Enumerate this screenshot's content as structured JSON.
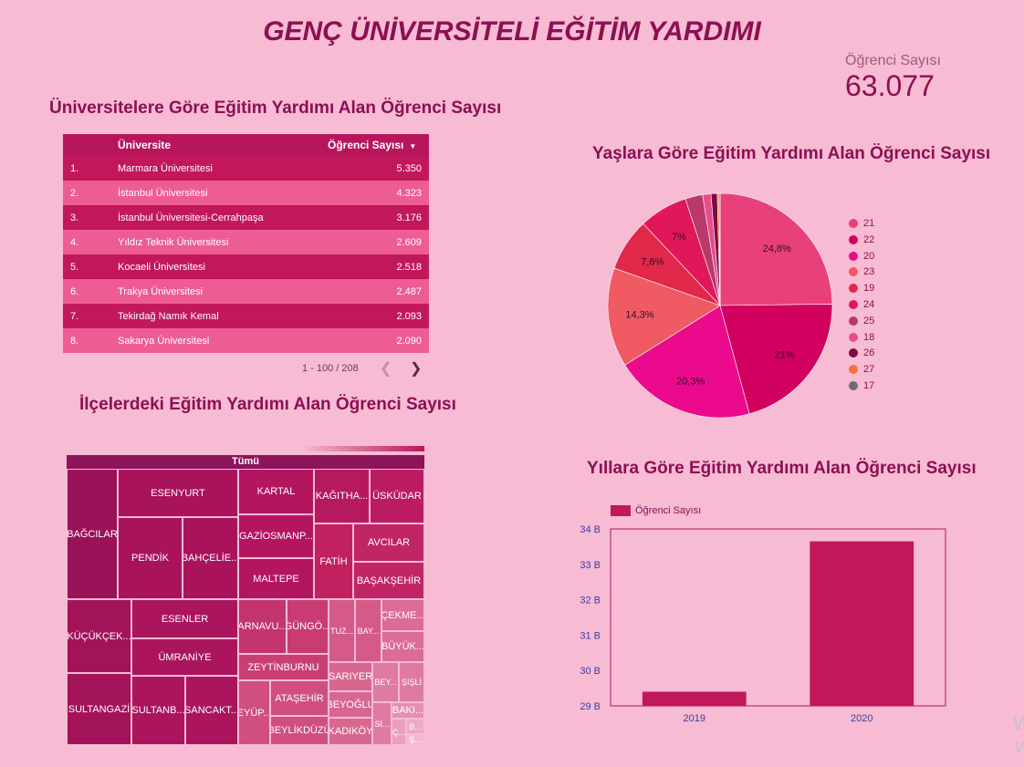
{
  "title": "GENÇ ÜNİVERSİTELİ EĞİTİM YARDIMI",
  "kpi": {
    "label": "Öğrenci Sayısı",
    "value": "63.077"
  },
  "colors": {
    "background": "#f7bbd3",
    "title": "#8c0f53",
    "bar": "#c2185b"
  },
  "table_section": {
    "title": "Üniversitelere Göre Eğitim Yardımı Alan Öğrenci Sayısı",
    "columns": [
      "Üniversite",
      "Öğrenci Sayısı"
    ],
    "rows": [
      {
        "n": "1.",
        "name": "Marmara Üniversitesi",
        "value": "5.350"
      },
      {
        "n": "2.",
        "name": "İstanbul Üniversitesi",
        "value": "4.323"
      },
      {
        "n": "3.",
        "name": "İstanbul Üniversitesi-Cerrahpaşa",
        "value": "3.176"
      },
      {
        "n": "4.",
        "name": "Yıldız Teknik Üniversitesi",
        "value": "2.609"
      },
      {
        "n": "5.",
        "name": "Kocaeli Üniversitesi",
        "value": "2.518"
      },
      {
        "n": "6.",
        "name": "Trakya Üniversitesi",
        "value": "2.487"
      },
      {
        "n": "7.",
        "name": "Tekirdağ Namık Kemal",
        "value": "2.093"
      },
      {
        "n": "8.",
        "name": "Sakarya Üniversitesi",
        "value": "2.090"
      }
    ],
    "pager": "1 - 100 / 208"
  },
  "pie_section": {
    "title": "Yaşlara Göre Eğitim Yardımı Alan Öğrenci Sayısı"
  },
  "treemap_section": {
    "title": "İlçelerdeki Eğitim Yardımı Alan Öğrenci Sayısı",
    "header": "Tümü"
  },
  "bar_section": {
    "title": "Yıllara Göre Eğitim Yardımı Alan Öğrenci Sayısı",
    "legend": "Öğrenci Sayısı"
  },
  "watermark": [
    "W",
    "W"
  ],
  "chart_data": [
    {
      "type": "table",
      "title": "Üniversitelere Göre Eğitim Yardımı Alan Öğrenci Sayısı",
      "columns": [
        "Üniversite",
        "Öğrenci Sayısı"
      ],
      "rows": [
        [
          "Marmara Üniversitesi",
          5350
        ],
        [
          "İstanbul Üniversitesi",
          4323
        ],
        [
          "İstanbul Üniversitesi-Cerrahpaşa",
          3176
        ],
        [
          "Yıldız Teknik Üniversitesi",
          2609
        ],
        [
          "Kocaeli Üniversitesi",
          2518
        ],
        [
          "Trakya Üniversitesi",
          2487
        ],
        [
          "Tekirdağ Namık Kemal",
          2093
        ],
        [
          "Sakarya Üniversitesi",
          2090
        ]
      ]
    },
    {
      "type": "pie",
      "title": "Yaşlara Göre Eğitim Yardımı Alan Öğrenci Sayısı",
      "legend_position": "right",
      "slices": [
        {
          "label": "21",
          "value": 24.8,
          "text": "24,8%",
          "color": "#e8407a"
        },
        {
          "label": "22",
          "value": 21.0,
          "text": "21%",
          "color": "#d2005f"
        },
        {
          "label": "20",
          "value": 20.3,
          "text": "20,3%",
          "color": "#ec0a8c"
        },
        {
          "label": "23",
          "value": 14.3,
          "text": "14,3%",
          "color": "#ef5a63"
        },
        {
          "label": "19",
          "value": 7.6,
          "text": "7,6%",
          "color": "#e0284a"
        },
        {
          "label": "24",
          "value": 7.0,
          "text": "7%",
          "color": "#e0185a"
        },
        {
          "label": "25",
          "value": 2.5,
          "text": "",
          "color": "#b8396a"
        },
        {
          "label": "18",
          "value": 1.2,
          "text": "",
          "color": "#e84c8c"
        },
        {
          "label": "26",
          "value": 0.9,
          "text": "",
          "color": "#7a0a45"
        },
        {
          "label": "27",
          "value": 0.25,
          "text": "",
          "color": "#f57040"
        },
        {
          "label": "17",
          "value": 0.15,
          "text": "",
          "color": "#6d6d6d"
        }
      ]
    },
    {
      "type": "treemap",
      "title": "İlçelerdeki Eğitim Yardımı Alan Öğrenci Sayısı",
      "root": "Tümü",
      "cells": [
        "BAĞCILAR",
        "ESENYURT",
        "PENDİK",
        "BAHÇELİE...",
        "KARTAL",
        "GAZİOSMANP...",
        "MALTEPE",
        "KAĞITHA...",
        "ÜSKÜDAR",
        "FATİH",
        "AVCILAR",
        "BAŞAKŞEHİR",
        "KÜÇÜKÇEK...",
        "ESENLER",
        "ÜMRANİYE",
        "SULTANGAZİ",
        "SULTANB...",
        "SANCAKT...",
        "ARNAVU...",
        "GÜNGÖ...",
        "TUZ...",
        "BAY...",
        "ÇEKME...",
        "BÜYÜK...",
        "ZEYTİNBURNU",
        "EYÜP...",
        "ATAŞEHİR",
        "SARIYER",
        "BEY...",
        "ŞİŞLİ",
        "BEYOĞLU",
        "BAKI...",
        "BEYLİKDÜZÜ",
        "KADIKÖY",
        "Sİ...",
        "Ç...",
        "B...",
        "Ş..."
      ]
    },
    {
      "type": "bar",
      "title": "Yıllara Göre Eğitim Yardımı Alan Öğrenci Sayısı",
      "categories": [
        "2019",
        "2020"
      ],
      "series": [
        {
          "name": "Öğrenci Sayısı",
          "values": [
            29.4,
            33.65
          ]
        }
      ],
      "ylim": [
        29,
        34
      ],
      "yticks": [
        "29 B",
        "30 B",
        "31 B",
        "32 B",
        "33 B",
        "34 B"
      ]
    }
  ]
}
